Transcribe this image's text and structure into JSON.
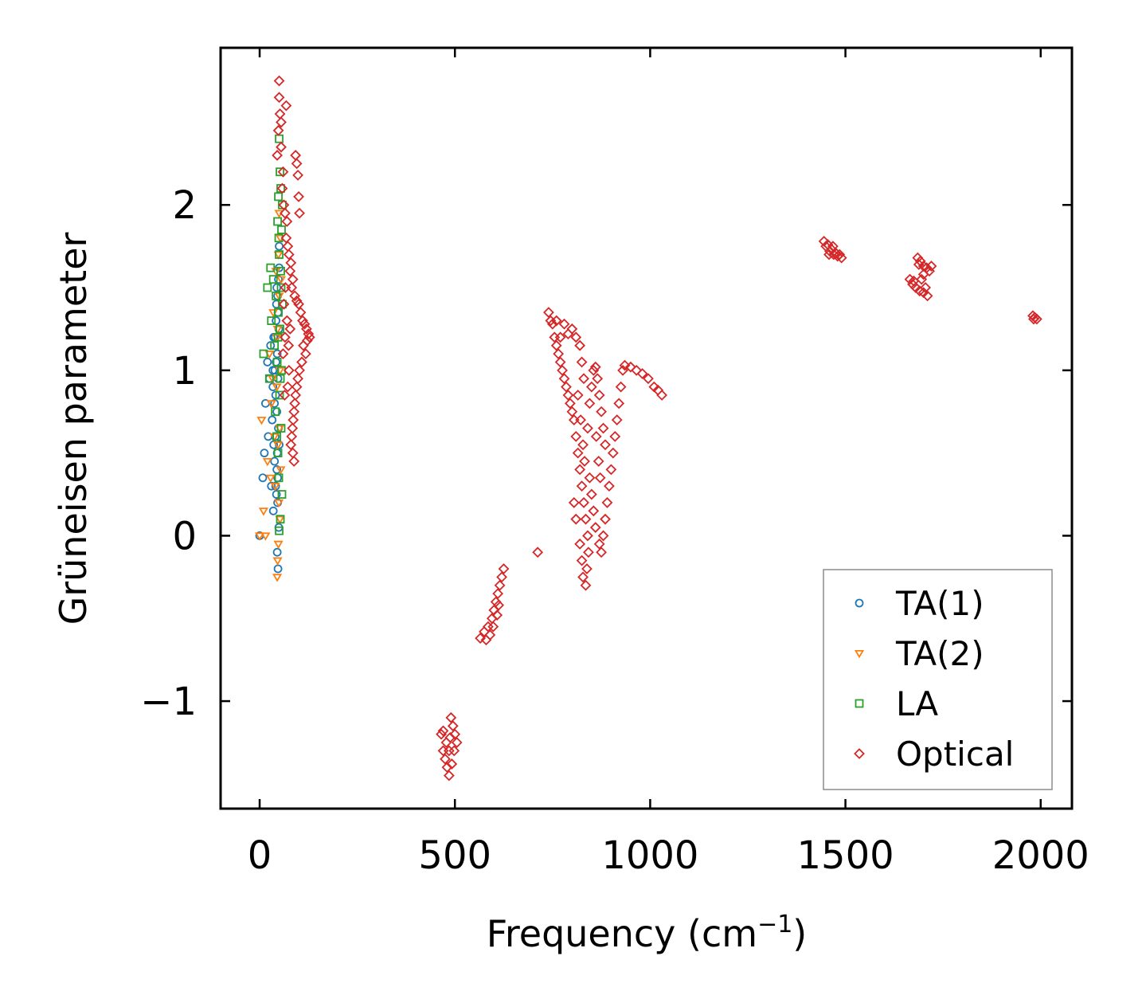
{
  "chart_data": {
    "type": "scatter",
    "title": "",
    "xlabel": "Frequency (cm",
    "xlabel_sup": "−1",
    "xlabel_close": ")",
    "ylabel": "Grüneisen parameter",
    "xlim": [
      -100,
      2080
    ],
    "ylim": [
      -1.65,
      2.95
    ],
    "xticks": [
      {
        "value": 0,
        "label": "0"
      },
      {
        "value": 500,
        "label": "500"
      },
      {
        "value": 1000,
        "label": "1000"
      },
      {
        "value": 1500,
        "label": "1500"
      },
      {
        "value": 2000,
        "label": "2000"
      }
    ],
    "yticks": [
      {
        "value": -1,
        "label": "−1"
      },
      {
        "value": 0,
        "label": "0"
      },
      {
        "value": 1,
        "label": "1"
      },
      {
        "value": 2,
        "label": "2"
      }
    ],
    "legend_position": "bottom-right",
    "series": [
      {
        "name": "TA(1)",
        "marker": "circle",
        "color": "#1f77b4",
        "points": [
          [
            0,
            0
          ],
          [
            8,
            0.35
          ],
          [
            12,
            0.5
          ],
          [
            15,
            0.8
          ],
          [
            20,
            1.05
          ],
          [
            22,
            0.6
          ],
          [
            25,
            0.95
          ],
          [
            28,
            1.15
          ],
          [
            30,
            0.3
          ],
          [
            32,
            0.7
          ],
          [
            34,
            0.9
          ],
          [
            35,
            0.15
          ],
          [
            36,
            1.2
          ],
          [
            38,
            0.45
          ],
          [
            39,
            1.0
          ],
          [
            40,
            0.6
          ],
          [
            41,
            0.85
          ],
          [
            42,
            1.3
          ],
          [
            43,
            0.25
          ],
          [
            44,
            0.75
          ],
          [
            45,
            1.1
          ],
          [
            45,
            0.5
          ],
          [
            46,
            1.45
          ],
          [
            46,
            0.35
          ],
          [
            47,
            0.95
          ],
          [
            47,
            1.35
          ],
          [
            48,
            0.65
          ],
          [
            48,
            1.55
          ],
          [
            49,
            0.05
          ],
          [
            49,
            1.25
          ],
          [
            50,
            1.75
          ],
          [
            50,
            0.55
          ],
          [
            45,
            -0.1
          ],
          [
            47,
            -0.2
          ],
          [
            44,
            0.4
          ],
          [
            43,
            1.4
          ],
          [
            42,
            1.05
          ],
          [
            40,
            1.2
          ],
          [
            38,
            0.8
          ],
          [
            36,
            0.55
          ],
          [
            34,
            1.0
          ],
          [
            50,
            1.62
          ],
          [
            46,
            0.2
          ],
          [
            44,
            1.5
          ],
          [
            41,
            0.3
          ]
        ]
      },
      {
        "name": "TA(2)",
        "marker": "triangle-down",
        "color": "#ff7f0e",
        "points": [
          [
            0,
            0
          ],
          [
            5,
            0.7
          ],
          [
            10,
            0.15
          ],
          [
            15,
            0
          ],
          [
            20,
            0.45
          ],
          [
            25,
            1.1
          ],
          [
            30,
            0.8
          ],
          [
            35,
            1.35
          ],
          [
            40,
            0.3
          ],
          [
            42,
            1.6
          ],
          [
            44,
            0.9
          ],
          [
            45,
            -0.25
          ],
          [
            46,
            1.25
          ],
          [
            47,
            0.55
          ],
          [
            48,
            1.7
          ],
          [
            48,
            -0.05
          ],
          [
            49,
            0.2
          ],
          [
            50,
            1.95
          ],
          [
            50,
            1.45
          ],
          [
            51,
            0.65
          ],
          [
            52,
            1.0
          ],
          [
            53,
            1.8
          ],
          [
            54,
            0.4
          ],
          [
            55,
            1.55
          ],
          [
            52,
            0.1
          ],
          [
            46,
            -0.15
          ],
          [
            44,
            1.2
          ],
          [
            38,
            0.6
          ],
          [
            33,
            0.95
          ],
          [
            28,
            0.35
          ]
        ]
      },
      {
        "name": "LA",
        "marker": "square",
        "color": "#2ca02c",
        "points": [
          [
            10,
            1.1
          ],
          [
            20,
            1.5
          ],
          [
            25,
            0.95
          ],
          [
            28,
            1.62
          ],
          [
            30,
            1.3
          ],
          [
            35,
            1.55
          ],
          [
            38,
            1.15
          ],
          [
            40,
            0.75
          ],
          [
            42,
            1.45
          ],
          [
            45,
            1.05
          ],
          [
            46,
            1.9
          ],
          [
            47,
            0.5
          ],
          [
            48,
            2.05
          ],
          [
            48,
            1.35
          ],
          [
            49,
            0.35
          ],
          [
            50,
            2.4
          ],
          [
            50,
            1.7
          ],
          [
            51,
            0.85
          ],
          [
            52,
            2.2
          ],
          [
            52,
            1.25
          ],
          [
            53,
            0.1
          ],
          [
            54,
            2.1
          ],
          [
            54,
            1.6
          ],
          [
            55,
            0.65
          ],
          [
            56,
            1.85
          ],
          [
            56,
            1.0
          ],
          [
            57,
            0.25
          ],
          [
            58,
            1.4
          ],
          [
            58,
            2.0
          ],
          [
            50,
            0.03
          ],
          [
            53,
            0.95
          ],
          [
            55,
            1.5
          ],
          [
            49,
            1.8
          ],
          [
            47,
            1.2
          ],
          [
            44,
            0.6
          ]
        ]
      },
      {
        "name": "Optical",
        "marker": "diamond",
        "color": "#d62728",
        "points": [
          [
            50,
            2.75
          ],
          [
            50,
            2.65
          ],
          [
            52,
            2.55
          ],
          [
            48,
            2.45
          ],
          [
            55,
            2.35
          ],
          [
            45,
            2.3
          ],
          [
            60,
            2.2
          ],
          [
            58,
            2.1
          ],
          [
            62,
            2.0
          ],
          [
            65,
            1.95
          ],
          [
            70,
            1.9
          ],
          [
            68,
            1.8
          ],
          [
            72,
            1.75
          ],
          [
            75,
            1.7
          ],
          [
            80,
            1.65
          ],
          [
            78,
            1.6
          ],
          [
            85,
            1.55
          ],
          [
            82,
            1.5
          ],
          [
            90,
            1.45
          ],
          [
            95,
            1.42
          ],
          [
            100,
            1.4
          ],
          [
            105,
            1.35
          ],
          [
            110,
            1.3
          ],
          [
            115,
            1.28
          ],
          [
            120,
            1.25
          ],
          [
            125,
            1.22
          ],
          [
            128,
            1.2
          ],
          [
            122,
            1.18
          ],
          [
            118,
            1.1
          ],
          [
            112,
            1.15
          ],
          [
            108,
            1.05
          ],
          [
            102,
            1.0
          ],
          [
            98,
            0.95
          ],
          [
            95,
            0.9
          ],
          [
            92,
            0.85
          ],
          [
            90,
            0.8
          ],
          [
            88,
            0.75
          ],
          [
            86,
            0.7
          ],
          [
            84,
            0.65
          ],
          [
            82,
            0.6
          ],
          [
            80,
            0.55
          ],
          [
            85,
            0.5
          ],
          [
            88,
            0.45
          ],
          [
            92,
            2.3
          ],
          [
            95,
            2.25
          ],
          [
            98,
            2.18
          ],
          [
            100,
            2.05
          ],
          [
            102,
            1.95
          ],
          [
            70,
            1.3
          ],
          [
            65,
            1.2
          ],
          [
            60,
            1.1
          ],
          [
            75,
            1.0
          ],
          [
            72,
            0.9
          ],
          [
            68,
            2.6
          ],
          [
            55,
            2.5
          ],
          [
            62,
            1.4
          ],
          [
            66,
            1.5
          ],
          [
            78,
            1.25
          ],
          [
            74,
            1.15
          ],
          [
            64,
            0.85
          ],
          [
            465,
            -1.2
          ],
          [
            470,
            -1.3
          ],
          [
            475,
            -1.35
          ],
          [
            480,
            -1.4
          ],
          [
            485,
            -1.45
          ],
          [
            490,
            -1.1
          ],
          [
            495,
            -1.15
          ],
          [
            500,
            -1.2
          ],
          [
            505,
            -1.25
          ],
          [
            485,
            -1.3
          ],
          [
            478,
            -1.25
          ],
          [
            492,
            -1.38
          ],
          [
            498,
            -1.3
          ],
          [
            470,
            -1.18
          ],
          [
            488,
            -1.22
          ],
          [
            565,
            -0.62
          ],
          [
            575,
            -0.58
          ],
          [
            585,
            -0.55
          ],
          [
            595,
            -0.5
          ],
          [
            600,
            -0.45
          ],
          [
            605,
            -0.4
          ],
          [
            610,
            -0.35
          ],
          [
            615,
            -0.3
          ],
          [
            620,
            -0.25
          ],
          [
            625,
            -0.2
          ],
          [
            590,
            -0.6
          ],
          [
            598,
            -0.55
          ],
          [
            608,
            -0.48
          ],
          [
            580,
            -0.63
          ],
          [
            612,
            -0.42
          ],
          [
            740,
            1.35
          ],
          [
            745,
            1.3
          ],
          [
            750,
            1.28
          ],
          [
            755,
            1.2
          ],
          [
            760,
            1.15
          ],
          [
            765,
            1.1
          ],
          [
            770,
            1.05
          ],
          [
            775,
            1.0
          ],
          [
            780,
            0.95
          ],
          [
            785,
            0.9
          ],
          [
            790,
            0.85
          ],
          [
            795,
            0.8
          ],
          [
            800,
            0.75
          ],
          [
            805,
            0.7
          ],
          [
            810,
            0.6
          ],
          [
            815,
            0.5
          ],
          [
            820,
            0.4
          ],
          [
            825,
            0.3
          ],
          [
            830,
            0.2
          ],
          [
            835,
            0.1
          ],
          [
            840,
            0.0
          ],
          [
            842,
            -0.1
          ],
          [
            838,
            -0.2
          ],
          [
            835,
            -0.3
          ],
          [
            800,
            1.25
          ],
          [
            810,
            1.2
          ],
          [
            820,
            1.15
          ],
          [
            825,
            1.05
          ],
          [
            830,
            0.95
          ],
          [
            790,
            1.22
          ],
          [
            780,
            1.28
          ],
          [
            770,
            1.2
          ],
          [
            760,
            1.3
          ],
          [
            815,
            0.85
          ],
          [
            822,
            0.7
          ],
          [
            828,
            0.55
          ],
          [
            832,
            0.45
          ],
          [
            845,
            0.35
          ],
          [
            850,
            0.25
          ],
          [
            855,
            0.15
          ],
          [
            860,
            0.05
          ],
          [
            870,
            -0.05
          ],
          [
            875,
            -0.1
          ],
          [
            880,
            0.0
          ],
          [
            885,
            0.1
          ],
          [
            890,
            0.2
          ],
          [
            895,
            0.3
          ],
          [
            900,
            0.4
          ],
          [
            905,
            0.5
          ],
          [
            910,
            0.6
          ],
          [
            915,
            0.7
          ],
          [
            920,
            0.8
          ],
          [
            925,
            0.9
          ],
          [
            930,
            1.0
          ],
          [
            860,
            1.02
          ],
          [
            865,
            0.95
          ],
          [
            870,
            0.85
          ],
          [
            875,
            0.75
          ],
          [
            880,
            0.65
          ],
          [
            885,
            0.55
          ],
          [
            868,
            0.45
          ],
          [
            872,
            0.35
          ],
          [
            862,
            0.6
          ],
          [
            845,
            0.8
          ],
          [
            850,
            0.9
          ],
          [
            855,
            1.0
          ],
          [
            840,
            0.65
          ],
          [
            935,
            1.03
          ],
          [
            950,
            1.02
          ],
          [
            965,
            1.0
          ],
          [
            980,
            0.98
          ],
          [
            995,
            0.95
          ],
          [
            1010,
            0.9
          ],
          [
            1020,
            0.88
          ],
          [
            1030,
            0.85
          ],
          [
            820,
            -0.05
          ],
          [
            825,
            -0.15
          ],
          [
            828,
            -0.25
          ],
          [
            810,
            0.1
          ],
          [
            805,
            0.2
          ],
          [
            712,
            -0.1
          ],
          [
            1445,
            1.78
          ],
          [
            1450,
            1.75
          ],
          [
            1455,
            1.76
          ],
          [
            1460,
            1.72
          ],
          [
            1465,
            1.73
          ],
          [
            1470,
            1.7
          ],
          [
            1475,
            1.71
          ],
          [
            1480,
            1.69
          ],
          [
            1485,
            1.7
          ],
          [
            1490,
            1.68
          ],
          [
            1458,
            1.7
          ],
          [
            1468,
            1.75
          ],
          [
            1665,
            1.55
          ],
          [
            1672,
            1.52
          ],
          [
            1680,
            1.5
          ],
          [
            1690,
            1.48
          ],
          [
            1700,
            1.47
          ],
          [
            1710,
            1.45
          ],
          [
            1685,
            1.68
          ],
          [
            1692,
            1.66
          ],
          [
            1700,
            1.63
          ],
          [
            1708,
            1.62
          ],
          [
            1715,
            1.6
          ],
          [
            1695,
            1.55
          ],
          [
            1700,
            1.58
          ],
          [
            1688,
            1.64
          ],
          [
            1720,
            1.63
          ],
          [
            1675,
            1.54
          ],
          [
            1705,
            1.5
          ],
          [
            1980,
            1.33
          ],
          [
            1985,
            1.32
          ],
          [
            1990,
            1.31
          ],
          [
            1982,
            1.31
          ]
        ]
      }
    ]
  }
}
